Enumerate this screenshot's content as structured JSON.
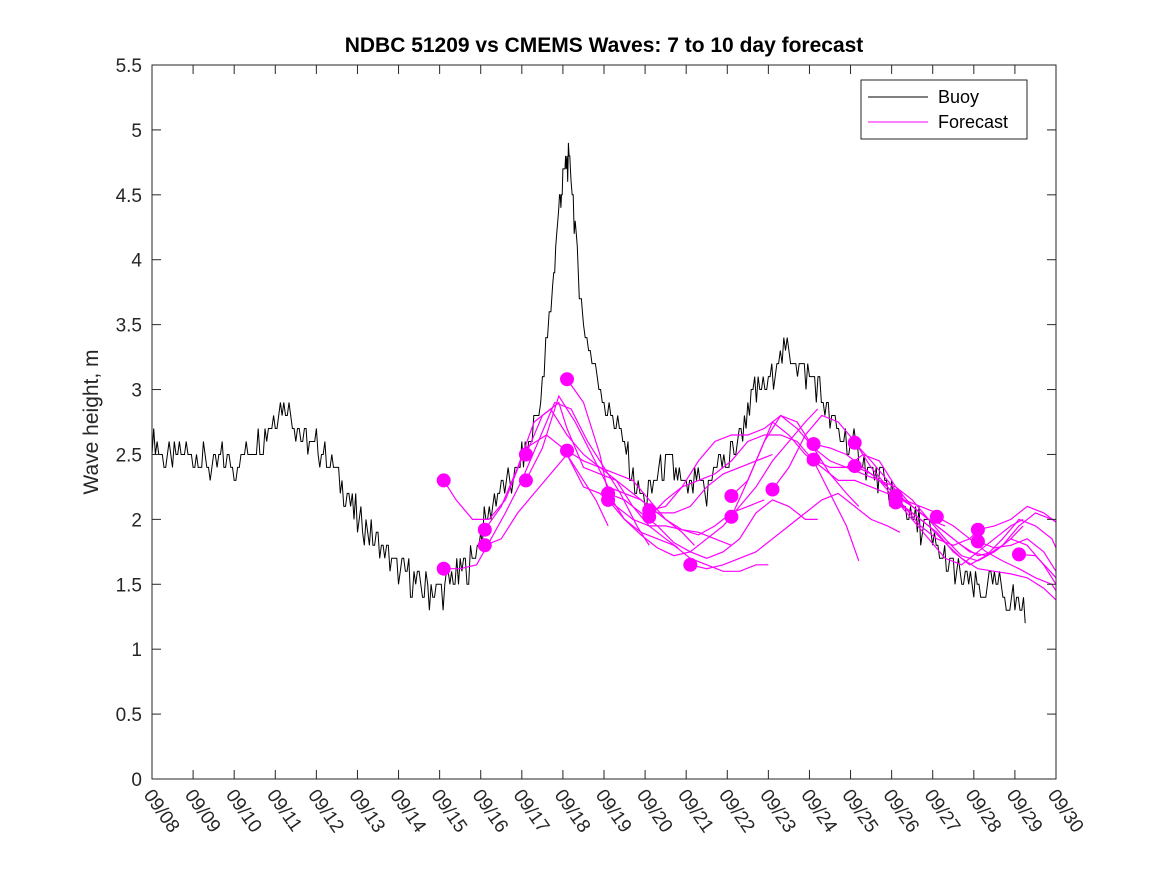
{
  "chart_data": {
    "type": "line",
    "title": "NDBC 51209 vs CMEMS Waves: 7 to 10 day forecast",
    "xlabel": "",
    "ylabel": "Wave height, m",
    "xlim": [
      0,
      22
    ],
    "ylim": [
      0,
      5.5
    ],
    "yticks": [
      0,
      0.5,
      1,
      1.5,
      2,
      2.5,
      3,
      3.5,
      4,
      4.5,
      5,
      5.5
    ],
    "ytick_labels": [
      "0",
      "0.5",
      "1",
      "1.5",
      "2",
      "2.5",
      "3",
      "3.5",
      "4",
      "4.5",
      "5",
      "5.5"
    ],
    "xtick_labels": [
      "09/08",
      "09/09",
      "09/10",
      "09/11",
      "09/12",
      "09/13",
      "09/14",
      "09/15",
      "09/16",
      "09/17",
      "09/18",
      "09/19",
      "09/20",
      "09/21",
      "09/22",
      "09/23",
      "09/24",
      "09/25",
      "09/26",
      "09/27",
      "09/28",
      "09/29",
      "09/30"
    ],
    "x_units": "days since 09/08",
    "grid": false,
    "legend": {
      "placement": "top-right",
      "entries": [
        "Buoy",
        "Forecast"
      ]
    },
    "colors": {
      "buoy": "#000000",
      "forecast": "#ff00ff"
    },
    "buoy": {
      "name": "Buoy",
      "x": [
        0,
        0.25,
        0.5,
        0.75,
        1,
        1.25,
        1.5,
        1.75,
        2,
        2.25,
        2.5,
        2.75,
        3,
        3.25,
        3.5,
        3.75,
        4,
        4.25,
        4.5,
        4.75,
        5,
        5.25,
        5.5,
        5.75,
        6,
        6.25,
        6.5,
        6.75,
        7,
        7.25,
        7.5,
        7.75,
        8,
        8.25,
        8.5,
        8.75,
        9,
        9.25,
        9.5,
        9.75,
        9.9,
        10,
        10.1,
        10.2,
        10.35,
        10.5,
        10.75,
        11,
        11.25,
        11.5,
        11.75,
        12,
        12.25,
        12.5,
        12.75,
        13,
        13.25,
        13.5,
        13.75,
        14,
        14.25,
        14.5,
        14.75,
        15,
        15.25,
        15.5,
        15.75,
        16,
        16.25,
        16.5,
        16.75,
        17,
        17.25,
        17.5,
        17.75,
        18,
        18.25,
        18.5,
        18.75,
        19,
        19.25,
        19.5,
        19.75,
        20,
        20.25,
        20.5,
        20.75,
        21,
        21.25
      ],
      "values": [
        2.6,
        2.5,
        2.45,
        2.5,
        2.5,
        2.45,
        2.4,
        2.45,
        2.4,
        2.5,
        2.6,
        2.65,
        2.8,
        2.9,
        2.75,
        2.6,
        2.55,
        2.5,
        2.35,
        2.2,
        2.0,
        1.9,
        1.8,
        1.72,
        1.6,
        1.55,
        1.5,
        1.45,
        1.45,
        1.5,
        1.6,
        1.65,
        1.9,
        2.1,
        2.2,
        2.3,
        2.45,
        2.65,
        3.0,
        3.8,
        4.4,
        4.6,
        4.75,
        4.7,
        4.0,
        3.5,
        3.2,
        2.9,
        2.8,
        2.55,
        2.25,
        2.15,
        2.3,
        2.45,
        2.35,
        2.2,
        2.3,
        2.15,
        2.5,
        2.4,
        2.6,
        2.85,
        3.0,
        3.05,
        3.25,
        3.3,
        3.2,
        3.1,
        3.0,
        2.75,
        2.65,
        2.55,
        2.5,
        2.35,
        2.3,
        2.2,
        2.15,
        2.0,
        1.95,
        1.85,
        1.7,
        1.6,
        1.55,
        1.45,
        1.45,
        1.5,
        1.4,
        1.35,
        1.35
      ]
    },
    "forecast_series": [
      {
        "name": "Forecast",
        "x": [
          7.1,
          7.4,
          7.8,
          8.2,
          8.6,
          9.1,
          9.6,
          10.0,
          10.4,
          10.8,
          11.1
        ],
        "values": [
          2.3,
          2.15,
          2.0,
          2.0,
          2.15,
          2.55,
          2.65,
          2.55,
          2.35,
          2.15,
          1.95
        ]
      },
      {
        "name": "Forecast",
        "x": [
          7.1,
          7.5,
          7.9,
          8.2,
          8.6,
          9.0,
          9.4,
          9.8,
          10.2,
          10.6,
          11.0,
          11.4,
          11.8,
          12.1
        ],
        "values": [
          1.62,
          1.62,
          1.65,
          1.82,
          2.05,
          2.3,
          2.6,
          2.9,
          2.85,
          2.6,
          2.4,
          2.2,
          1.95,
          1.8
        ]
      },
      {
        "name": "Forecast",
        "x": [
          8.1,
          8.5,
          8.9,
          9.3,
          9.7,
          10.1,
          10.5,
          10.9,
          11.3,
          11.7,
          12.1,
          12.5,
          12.9,
          13.2
        ],
        "values": [
          1.92,
          2.1,
          2.4,
          2.75,
          2.85,
          2.65,
          2.5,
          2.4,
          2.3,
          2.2,
          2.1,
          2.0,
          1.9,
          1.8
        ]
      },
      {
        "name": "Forecast",
        "x": [
          8.1,
          8.5,
          8.9,
          9.3,
          9.7,
          10.1,
          10.5,
          10.9,
          11.3,
          11.7,
          12.1,
          12.5,
          12.8
        ],
        "values": [
          1.8,
          1.85,
          2.05,
          2.2,
          2.35,
          2.5,
          2.25,
          2.2,
          2.1,
          2.0,
          1.95,
          1.85,
          1.78
        ]
      },
      {
        "name": "Forecast",
        "x": [
          9.1,
          9.5,
          9.9,
          10.1,
          10.5,
          10.9,
          11.3,
          11.7,
          12.1,
          12.5,
          12.9,
          13.3,
          13.7,
          14.1
        ],
        "values": [
          2.5,
          2.8,
          2.9,
          2.7,
          2.4,
          2.35,
          2.3,
          2.1,
          1.95,
          1.95,
          1.92,
          1.9,
          1.85,
          1.8
        ]
      },
      {
        "name": "Forecast",
        "x": [
          9.1,
          9.5,
          9.9,
          10.3,
          10.7,
          11.1,
          11.5,
          11.9,
          12.3,
          12.7,
          13.1,
          13.5,
          13.9,
          14.3,
          14.7,
          15.1
        ],
        "values": [
          2.3,
          2.55,
          2.95,
          2.75,
          2.5,
          2.25,
          2.2,
          2.15,
          2.05,
          2.05,
          2.1,
          2.25,
          2.35,
          2.4,
          2.45,
          2.5
        ]
      },
      {
        "name": "Forecast",
        "x": [
          10.1,
          10.5,
          10.9,
          11.1,
          11.5,
          11.9,
          12.3,
          12.7,
          13.1,
          13.5,
          13.9,
          14.3,
          14.7,
          15.0
        ],
        "values": [
          3.08,
          2.9,
          2.5,
          2.2,
          2.0,
          1.9,
          1.85,
          1.8,
          1.7,
          1.65,
          1.6,
          1.6,
          1.65,
          1.65
        ]
      },
      {
        "name": "Forecast",
        "x": [
          10.1,
          10.5,
          10.9,
          11.3,
          11.7,
          12.1,
          12.5,
          12.9,
          13.3,
          13.7,
          14.1,
          14.5,
          14.9
        ],
        "values": [
          2.53,
          2.45,
          2.4,
          2.35,
          2.3,
          2.15,
          2.0,
          1.92,
          1.88,
          1.95,
          2.05,
          2.1,
          2.15
        ]
      },
      {
        "name": "Forecast",
        "x": [
          11.1,
          11.5,
          11.9,
          12.3,
          12.7,
          13.1,
          13.5,
          13.9,
          14.3,
          14.7,
          15.1,
          15.5,
          15.9,
          16.2
        ],
        "values": [
          2.2,
          2.15,
          2.05,
          1.95,
          1.82,
          1.75,
          1.7,
          1.75,
          1.85,
          2.05,
          2.15,
          2.1,
          2.0,
          2.0
        ]
      },
      {
        "name": "Forecast",
        "x": [
          11.1,
          11.5,
          11.9,
          12.3,
          12.7,
          13.1,
          13.5,
          13.9,
          14.3,
          14.7,
          15.1,
          15.5,
          15.9,
          16.2
        ],
        "values": [
          2.15,
          2.0,
          1.88,
          1.78,
          1.72,
          1.75,
          1.85,
          1.95,
          2.1,
          2.25,
          2.45,
          2.6,
          2.75,
          2.85
        ]
      },
      {
        "name": "Forecast",
        "x": [
          12.1,
          12.5,
          12.9,
          13.3,
          13.7,
          14.1,
          14.5,
          14.9,
          15.3,
          15.7,
          16.1,
          16.5,
          16.9,
          17.2
        ],
        "values": [
          2.07,
          2.1,
          2.25,
          2.45,
          2.6,
          2.65,
          2.65,
          2.7,
          2.8,
          2.75,
          2.55,
          2.35,
          2.2,
          2.1
        ]
      },
      {
        "name": "Forecast",
        "x": [
          12.1,
          12.5,
          12.9,
          13.3,
          13.7,
          14.1,
          14.5,
          14.9,
          15.3,
          15.7,
          16.1,
          16.5,
          16.9,
          17.2
        ],
        "values": [
          2.02,
          2.15,
          2.25,
          2.3,
          2.35,
          2.45,
          2.6,
          2.65,
          2.65,
          2.6,
          2.45,
          2.2,
          1.95,
          1.68
        ]
      },
      {
        "name": "Forecast",
        "x": [
          13.1,
          13.5,
          13.9,
          14.3,
          14.7,
          15.1,
          15.5,
          15.9,
          16.3,
          16.7,
          17.1,
          17.5,
          17.9,
          18.2
        ],
        "values": [
          1.65,
          1.62,
          1.65,
          1.7,
          1.75,
          1.85,
          1.95,
          2.05,
          2.15,
          2.2,
          2.1,
          2.0,
          1.95,
          1.9
        ]
      },
      {
        "name": "Forecast",
        "x": [
          14.1,
          14.5,
          14.9,
          15.1,
          15.5,
          15.9,
          16.3,
          16.7,
          17.1,
          17.5,
          17.9,
          18.3,
          18.7,
          19.1
        ],
        "values": [
          2.18,
          2.3,
          2.6,
          2.75,
          2.65,
          2.5,
          2.4,
          2.3,
          2.3,
          2.25,
          2.2,
          2.15,
          2.1,
          2.05
        ]
      },
      {
        "name": "Forecast",
        "x": [
          14.1,
          14.5,
          14.9,
          15.3,
          15.7,
          16.1,
          16.5,
          16.9,
          17.3,
          17.7,
          18.1,
          18.5,
          18.9,
          19.3
        ],
        "values": [
          2.02,
          2.3,
          2.6,
          2.8,
          2.7,
          2.55,
          2.45,
          2.4,
          2.5,
          2.45,
          2.25,
          2.1,
          2.0,
          1.95
        ]
      },
      {
        "name": "Forecast",
        "x": [
          15.1,
          15.5,
          15.9,
          16.3,
          16.7,
          17.1,
          17.5,
          17.9,
          18.3,
          18.7,
          19.1,
          19.5,
          19.9,
          20.2
        ],
        "values": [
          2.23,
          2.4,
          2.65,
          2.8,
          2.75,
          2.6,
          2.4,
          2.25,
          2.1,
          1.95,
          1.85,
          1.8,
          1.85,
          1.95
        ]
      },
      {
        "name": "Forecast",
        "x": [
          16.1,
          16.5,
          16.9,
          17.3,
          17.7,
          18.1,
          18.5,
          18.9,
          19.3,
          19.7,
          20.1,
          20.5,
          20.9,
          21.2
        ],
        "values": [
          2.58,
          2.55,
          2.5,
          2.4,
          2.3,
          2.15,
          2.0,
          1.85,
          1.7,
          1.65,
          1.75,
          1.85,
          1.95,
          2.0
        ]
      },
      {
        "name": "Forecast",
        "x": [
          16.1,
          16.5,
          16.9,
          17.3,
          17.7,
          18.1,
          18.5,
          18.9,
          19.3,
          19.7,
          20.1,
          20.5,
          20.9,
          21.2
        ],
        "values": [
          2.46,
          2.4,
          2.4,
          2.35,
          2.3,
          2.25,
          2.15,
          2.0,
          1.85,
          1.72,
          1.68,
          1.75,
          1.85,
          1.95
        ]
      },
      {
        "name": "Forecast",
        "x": [
          17.1,
          17.5,
          17.9,
          18.3,
          18.7,
          19.1,
          19.5,
          19.9,
          20.3,
          20.7,
          21.1,
          21.5,
          21.9,
          22.0
        ],
        "values": [
          2.59,
          2.45,
          2.3,
          2.15,
          2.05,
          1.95,
          1.85,
          1.75,
          1.72,
          1.8,
          1.95,
          2.05,
          2.0,
          1.98
        ]
      },
      {
        "name": "Forecast",
        "x": [
          17.1,
          17.5,
          17.9,
          18.3,
          18.7,
          19.1,
          19.5,
          19.9,
          20.3,
          20.7,
          21.1,
          21.5,
          21.9,
          22.0
        ],
        "values": [
          2.41,
          2.35,
          2.25,
          2.1,
          2.0,
          1.9,
          1.75,
          1.65,
          1.72,
          1.85,
          2.0,
          1.95,
          1.85,
          1.78
        ]
      },
      {
        "name": "Forecast",
        "x": [
          18.1,
          18.5,
          18.9,
          19.3,
          19.7,
          20.1,
          20.5,
          20.9,
          21.3,
          21.7,
          22.0
        ],
        "values": [
          2.18,
          2.1,
          2.0,
          1.9,
          1.8,
          1.72,
          1.75,
          1.85,
          1.8,
          1.65,
          1.5
        ]
      },
      {
        "name": "Forecast",
        "x": [
          18.1,
          18.5,
          18.9,
          19.3,
          19.7,
          20.1,
          20.5,
          20.9,
          21.3,
          21.7,
          22.0
        ],
        "values": [
          2.13,
          2.05,
          1.95,
          1.82,
          1.7,
          1.62,
          1.6,
          1.58,
          1.55,
          1.47,
          1.38
        ]
      },
      {
        "name": "Forecast",
        "x": [
          19.1,
          19.5,
          19.9,
          20.3,
          20.7,
          21.1,
          21.5,
          21.9,
          22.0
        ],
        "values": [
          2.02,
          1.95,
          1.85,
          1.75,
          1.68,
          1.62,
          1.55,
          1.5,
          1.45
        ]
      },
      {
        "name": "Forecast",
        "x": [
          20.1,
          20.5,
          20.9,
          21.3,
          21.7,
          22.0
        ],
        "values": [
          1.92,
          1.95,
          2.0,
          2.1,
          2.05,
          1.98
        ]
      },
      {
        "name": "Forecast",
        "x": [
          20.1,
          20.5,
          20.9,
          21.3,
          21.7,
          22.0
        ],
        "values": [
          1.83,
          1.78,
          1.8,
          1.85,
          1.75,
          1.6
        ]
      },
      {
        "name": "Forecast",
        "x": [
          21.1,
          21.5,
          21.8,
          22.0
        ],
        "values": [
          1.73,
          1.72,
          1.62,
          1.55
        ]
      }
    ]
  }
}
